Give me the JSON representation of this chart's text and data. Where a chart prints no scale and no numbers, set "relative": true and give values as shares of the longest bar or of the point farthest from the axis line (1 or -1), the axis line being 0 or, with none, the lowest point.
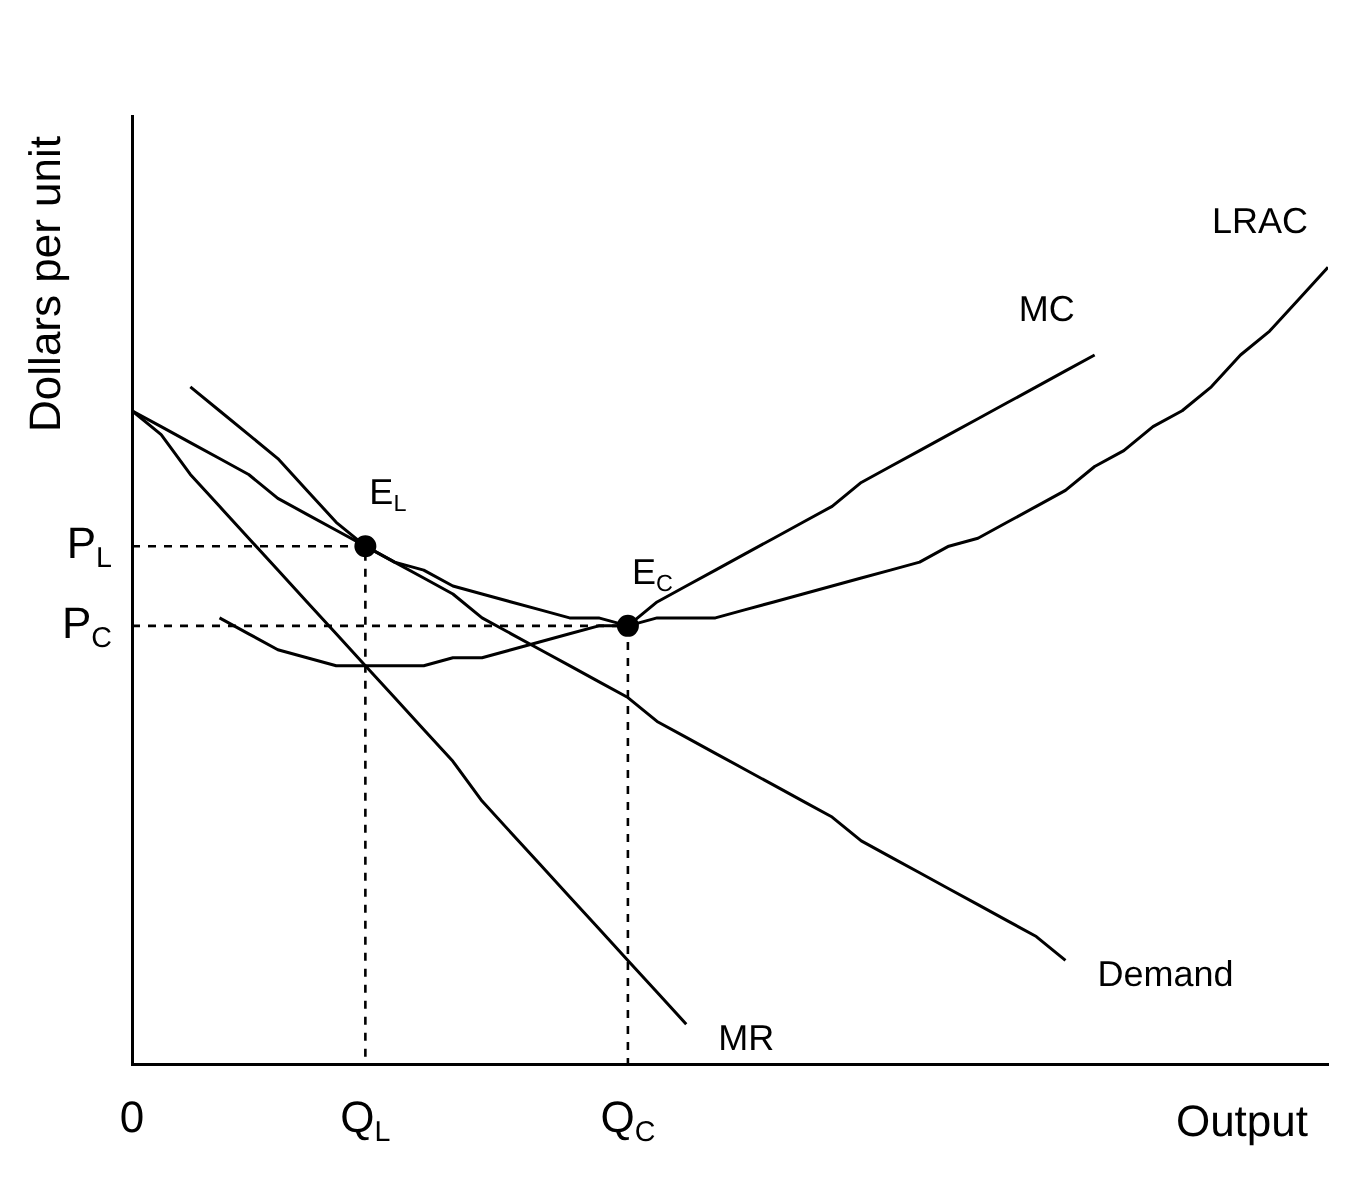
{
  "chart_data": {
    "type": "line",
    "relative": true,
    "xlabel": "Output",
    "ylabel": "Dollars per unit",
    "categories": [
      "0",
      null,
      null,
      null,
      null,
      null,
      null,
      null,
      "Q$_{L}$",
      null,
      null,
      null,
      null,
      null,
      null,
      null,
      null,
      "Q$_{C}$",
      null,
      null,
      null,
      null,
      null,
      null,
      null,
      null,
      null,
      null,
      null,
      null,
      null,
      null,
      null,
      null,
      null,
      null,
      null,
      null,
      null,
      null,
      null,
      null
    ],
    "grid": false,
    "legend": false,
    "line_style": "solid",
    "series": [
      {
        "name": "Demand",
        "color": "#000000",
        "values": [
          0.82,
          0.8,
          0.78,
          0.76,
          0.74,
          0.71,
          0.69,
          0.67,
          0.65,
          0.63,
          0.61,
          0.59,
          0.56,
          0.54,
          0.52,
          0.5,
          0.48,
          0.46,
          0.43,
          0.41,
          0.39,
          0.37,
          0.35,
          0.33,
          0.31,
          0.28,
          0.26,
          0.24,
          0.22,
          0.2,
          0.18,
          0.16,
          0.13,
          null,
          null,
          null,
          null,
          null,
          null,
          null,
          null,
          null
        ]
      },
      {
        "name": "MR",
        "color": "#000000",
        "values": [
          0.82,
          0.79,
          0.74,
          0.7,
          0.66,
          0.62,
          0.58,
          0.54,
          0.5,
          0.46,
          0.42,
          0.38,
          0.33,
          0.29,
          0.25,
          0.21,
          0.17,
          0.13,
          0.09,
          0.05,
          null,
          null,
          null,
          null,
          null,
          null,
          null,
          null,
          null,
          null,
          null,
          null,
          null,
          null,
          null,
          null,
          null,
          null,
          null,
          null,
          null,
          null
        ]
      },
      {
        "name": "MC",
        "color": "#000000",
        "values": [
          null,
          null,
          null,
          0.56,
          0.54,
          0.52,
          0.51,
          0.5,
          0.5,
          0.5,
          0.5,
          0.51,
          0.51,
          0.52,
          0.53,
          0.54,
          0.55,
          0.55,
          0.58,
          0.6,
          0.62,
          0.64,
          0.66,
          0.68,
          0.7,
          0.73,
          0.75,
          0.77,
          0.79,
          0.81,
          0.83,
          0.85,
          0.87,
          0.89,
          null,
          null,
          null,
          null,
          null,
          null,
          null,
          null
        ]
      },
      {
        "name": "LRAC",
        "color": "#000000",
        "values": [
          null,
          null,
          0.85,
          0.82,
          0.79,
          0.76,
          0.72,
          0.68,
          0.65,
          0.63,
          0.62,
          0.6,
          0.59,
          0.58,
          0.57,
          0.56,
          0.56,
          0.55,
          0.56,
          0.56,
          0.56,
          0.57,
          0.58,
          0.59,
          0.6,
          0.61,
          0.62,
          0.63,
          0.65,
          0.66,
          0.68,
          0.7,
          0.72,
          0.75,
          0.77,
          0.8,
          0.82,
          0.85,
          0.89,
          0.92,
          0.96,
          1.0
        ]
      },
      {
        "type": "line",
        "line_style": "dashed",
        "color": "#000000",
        "x": [
          "0",
          "Q$_{L}$",
          "Q$_{L}$"
        ],
        "values": [
          0.65,
          0.65,
          0
        ]
      },
      {
        "type": "line",
        "line_style": "dashed",
        "color": "#000000",
        "x": [
          "0",
          "Q$_{C}$",
          "Q$_{C}$"
        ],
        "values": [
          0.55,
          0.55,
          0
        ]
      },
      {
        "type": "scatter",
        "marker": "circle",
        "color": "#000000",
        "x": [
          "Q$_{L}$",
          "Q$_{C}$"
        ],
        "values": [
          0.65,
          0.55
        ]
      }
    ],
    "annotations": [
      {
        "text": "P$_{L}$",
        "x": "0",
        "y": 0.65
      },
      {
        "text": "P$_{C}$",
        "x": "0",
        "y": 0.55
      },
      {
        "text": "E$_{L}$",
        "x": "Q$_{L}$",
        "y": 0.65
      },
      {
        "text": "E$_{C}$",
        "x": "Q$_{C}$",
        "y": 0.55
      }
    ]
  }
}
